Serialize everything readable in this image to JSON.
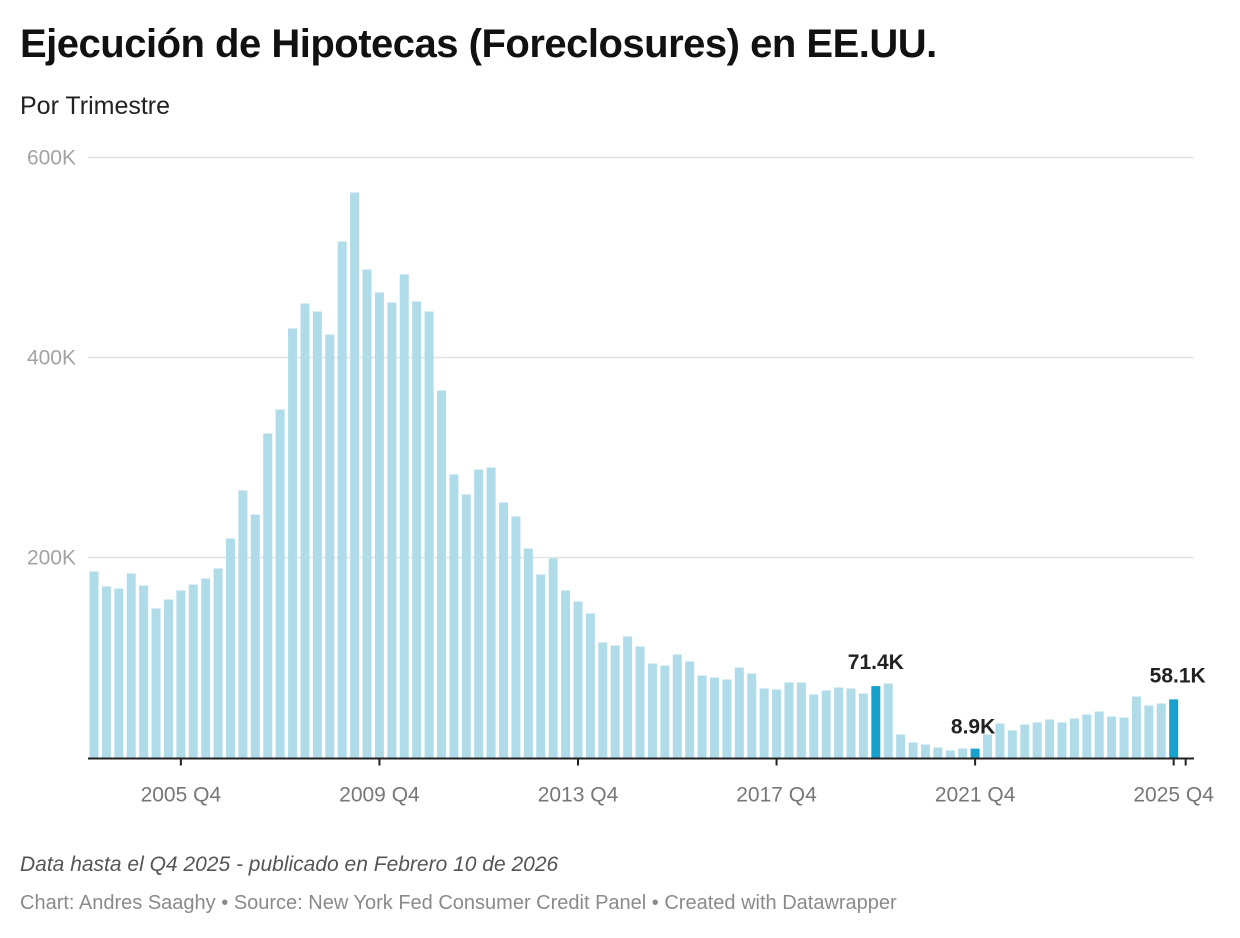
{
  "header": {
    "title": "Ejecución de Hipotecas (Foreclosures) en EE.UU.",
    "subtitle": "Por Trimestre"
  },
  "footer": {
    "note": "Data hasta el Q4 2025 - publicado en Febrero 10 de 2026",
    "credits": [
      "Chart: Andres Saaghy",
      "Source: New York Fed Consumer Credit Panel",
      "Created with Datawrapper"
    ],
    "separator": " • "
  },
  "colors": {
    "bar": "#b0dcea",
    "highlight": "#18a1cd",
    "grid": "#e3e3e3",
    "axis": "#222222"
  },
  "chart_data": {
    "type": "bar",
    "title": "Ejecución de Hipotecas (Foreclosures) en EE.UU.",
    "subtitle": "Por Trimestre",
    "xlabel": "",
    "ylabel": "",
    "ylim": [
      0,
      600000
    ],
    "yticks": [
      200000,
      400000,
      600000
    ],
    "ytick_labels": [
      "200K",
      "400K",
      "600K"
    ],
    "grid": true,
    "legend": "none",
    "first_quarter": "2004 Q1",
    "xtick_labels": [
      {
        "category": "2005 Q4",
        "label": "2005 Q4"
      },
      {
        "category": "2009 Q4",
        "label": "2009 Q4"
      },
      {
        "category": "2013 Q4",
        "label": "2013 Q4"
      },
      {
        "category": "2017 Q4",
        "label": "2017 Q4"
      },
      {
        "category": "2021 Q4",
        "label": "2021 Q4"
      },
      {
        "category": "2025 Q4",
        "label": "2025 Q4"
      }
    ],
    "categories": [
      "2004 Q1",
      "2004 Q2",
      "2004 Q3",
      "2004 Q4",
      "2005 Q1",
      "2005 Q2",
      "2005 Q3",
      "2005 Q4",
      "2006 Q1",
      "2006 Q2",
      "2006 Q3",
      "2006 Q4",
      "2007 Q1",
      "2007 Q2",
      "2007 Q3",
      "2007 Q4",
      "2008 Q1",
      "2008 Q2",
      "2008 Q3",
      "2008 Q4",
      "2009 Q1",
      "2009 Q2",
      "2009 Q3",
      "2009 Q4",
      "2010 Q1",
      "2010 Q2",
      "2010 Q3",
      "2010 Q4",
      "2011 Q1",
      "2011 Q2",
      "2011 Q3",
      "2011 Q4",
      "2012 Q1",
      "2012 Q2",
      "2012 Q3",
      "2012 Q4",
      "2013 Q1",
      "2013 Q2",
      "2013 Q3",
      "2013 Q4",
      "2014 Q1",
      "2014 Q2",
      "2014 Q3",
      "2014 Q4",
      "2015 Q1",
      "2015 Q2",
      "2015 Q3",
      "2015 Q4",
      "2016 Q1",
      "2016 Q2",
      "2016 Q3",
      "2016 Q4",
      "2017 Q1",
      "2017 Q2",
      "2017 Q3",
      "2017 Q4",
      "2018 Q1",
      "2018 Q2",
      "2018 Q3",
      "2018 Q4",
      "2019 Q1",
      "2019 Q2",
      "2019 Q3",
      "2019 Q4",
      "2020 Q1",
      "2020 Q2",
      "2020 Q3",
      "2020 Q4",
      "2021 Q1",
      "2021 Q2",
      "2021 Q3",
      "2021 Q4",
      "2022 Q1",
      "2022 Q2",
      "2022 Q3",
      "2022 Q4",
      "2023 Q1",
      "2023 Q2",
      "2023 Q3",
      "2023 Q4",
      "2024 Q1",
      "2024 Q2",
      "2024 Q3",
      "2024 Q4",
      "2025 Q1",
      "2025 Q2",
      "2025 Q3",
      "2025 Q4"
    ],
    "values": [
      186000,
      171000,
      169000,
      184000,
      172000,
      149000,
      158000,
      167000,
      173000,
      179000,
      189000,
      219000,
      267000,
      243000,
      324000,
      348000,
      429000,
      454000,
      446000,
      423000,
      516000,
      565000,
      488000,
      465000,
      455000,
      483000,
      456000,
      446000,
      367000,
      283000,
      263000,
      288000,
      290000,
      255000,
      241000,
      209000,
      183000,
      199000,
      167000,
      156000,
      144000,
      115000,
      112000,
      121000,
      111000,
      94000,
      92000,
      103000,
      96000,
      82000,
      80000,
      78000,
      90000,
      84000,
      69000,
      68000,
      75000,
      75000,
      63000,
      67000,
      70000,
      69000,
      64000,
      71400,
      74000,
      23000,
      15000,
      13000,
      10000,
      7000,
      9000,
      8900,
      23000,
      34000,
      27000,
      33000,
      35000,
      38000,
      35000,
      39000,
      43000,
      46000,
      41000,
      40000,
      61000,
      52000,
      54000,
      58100
    ],
    "highlights": [
      {
        "category": "2019 Q4",
        "value": 71400,
        "label": "71.4K"
      },
      {
        "category": "2021 Q4",
        "value": 8900,
        "label": "8.9K"
      },
      {
        "category": "2025 Q4",
        "value": 58100,
        "label": "58.1K"
      }
    ]
  }
}
